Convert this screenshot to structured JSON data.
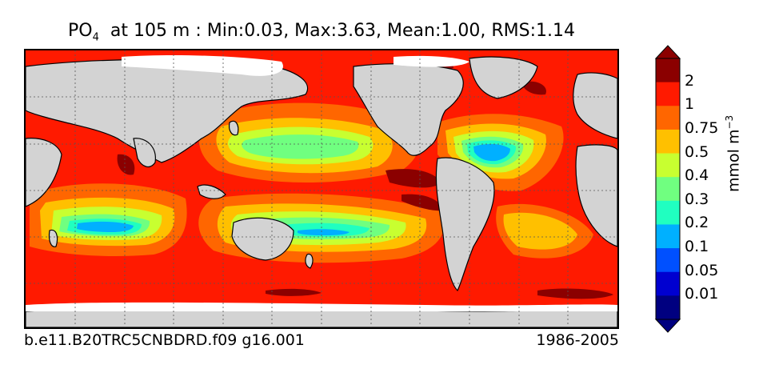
{
  "title": {
    "variable": "PO",
    "subscript": "4",
    "rest": "  at 105 m : Min:0.03, Max:3.63, Mean:1.00, RMS:1.14"
  },
  "footer": {
    "run_id": "b.e11.B20TRC5CNBDRD.f09 g16.001",
    "period": "1986-2005"
  },
  "colorbar": {
    "units_base": "mmol m",
    "units_exp": "−3",
    "labels": [
      "2",
      "1",
      "0.75",
      "0.5",
      "0.4",
      "0.3",
      "0.2",
      "0.1",
      "0.05",
      "0.01"
    ],
    "colors": [
      "#8b0000",
      "#ff1a00",
      "#ff6600",
      "#ffc000",
      "#c8ff30",
      "#70ff80",
      "#20ffc0",
      "#00b0ff",
      "#0050ff",
      "#0000d0",
      "#000080"
    ]
  },
  "map": {
    "land_color": "#d3d3d3",
    "ice_color": "#ffffff",
    "ocean_levels": [
      "#ff1a00",
      "#ff6600",
      "#ffc000",
      "#c8ff30",
      "#70ff80",
      "#20ffc0",
      "#00b0ff",
      "#8b0000"
    ]
  }
}
